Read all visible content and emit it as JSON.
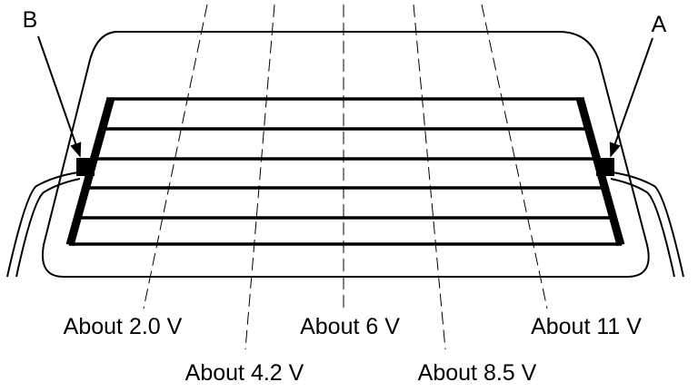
{
  "terminals": {
    "b": "B",
    "a": "A"
  },
  "voltages": [
    "About 2.0 V",
    "About 4.2 V",
    "About 6 V",
    "About 8.5 V",
    "About 11 V"
  ]
}
